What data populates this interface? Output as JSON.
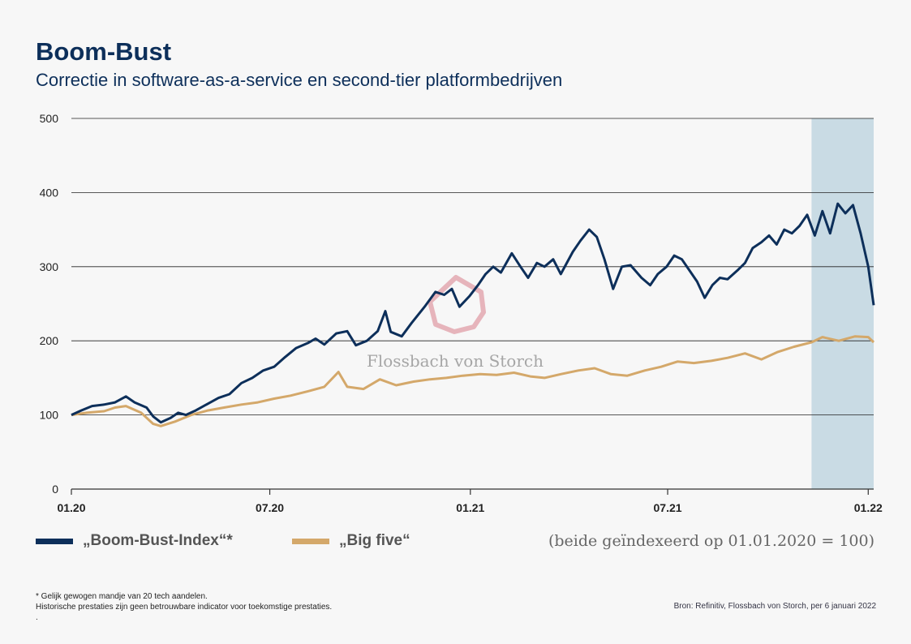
{
  "header": {
    "title": "Boom-Bust",
    "subtitle": "Correctie in software-as-a-service en second-tier platformbedrijven"
  },
  "watermark": {
    "text": "Flossbach von Storch"
  },
  "legend": {
    "items": [
      {
        "label": "„Boom-Bust-Index“*",
        "color": "#0d2f5a"
      },
      {
        "label": "„Big five“",
        "color": "#d4a86a"
      }
    ],
    "note": "(beide geïndexeerd op 01.01.2020 = 100)"
  },
  "footer": {
    "footnote_lines": [
      "* Gelijk gewogen mandje van 20 tech aandelen.",
      "Historische prestaties zijn geen betrouwbare indicator voor toekomstige prestaties.",
      "."
    ],
    "source": "Bron: Refinitiv, Flossbach von Storch, per 6 januari 2022"
  },
  "chart_data": {
    "type": "line",
    "ylim": [
      0,
      500
    ],
    "yticks": [
      0,
      100,
      200,
      300,
      400,
      500
    ],
    "xlim": [
      "2020-01-01",
      "2022-01-06"
    ],
    "xticks": [
      {
        "date": "2020-01-01",
        "label": "01.20"
      },
      {
        "date": "2020-07-01",
        "label": "07.20"
      },
      {
        "date": "2021-01-01",
        "label": "01.21"
      },
      {
        "date": "2021-07-01",
        "label": "07.21"
      },
      {
        "date": "2022-01-01",
        "label": "01.22"
      }
    ],
    "highlight_range": [
      "2021-11-10",
      "2022-01-06"
    ],
    "highlight_color": "#c9dbe4",
    "grid": true,
    "series": [
      {
        "name": "„Boom-Bust-Index“*",
        "color": "#0d2f5a",
        "points": [
          [
            "2020-01-01",
            100
          ],
          [
            "2020-01-10",
            106
          ],
          [
            "2020-01-20",
            112
          ],
          [
            "2020-01-31",
            114
          ],
          [
            "2020-02-10",
            117
          ],
          [
            "2020-02-20",
            125
          ],
          [
            "2020-02-28",
            117
          ],
          [
            "2020-03-10",
            110
          ],
          [
            "2020-03-16",
            98
          ],
          [
            "2020-03-23",
            90
          ],
          [
            "2020-04-01",
            96
          ],
          [
            "2020-04-08",
            103
          ],
          [
            "2020-04-15",
            100
          ],
          [
            "2020-04-24",
            106
          ],
          [
            "2020-05-05",
            115
          ],
          [
            "2020-05-15",
            123
          ],
          [
            "2020-05-25",
            128
          ],
          [
            "2020-06-05",
            143
          ],
          [
            "2020-06-15",
            150
          ],
          [
            "2020-06-25",
            160
          ],
          [
            "2020-07-05",
            165
          ],
          [
            "2020-07-15",
            178
          ],
          [
            "2020-07-25",
            190
          ],
          [
            "2020-08-05",
            197
          ],
          [
            "2020-08-12",
            203
          ],
          [
            "2020-08-20",
            195
          ],
          [
            "2020-08-31",
            210
          ],
          [
            "2020-09-10",
            213
          ],
          [
            "2020-09-18",
            194
          ],
          [
            "2020-09-28",
            200
          ],
          [
            "2020-10-08",
            213
          ],
          [
            "2020-10-15",
            240
          ],
          [
            "2020-10-20",
            212
          ],
          [
            "2020-10-30",
            206
          ],
          [
            "2020-11-08",
            224
          ],
          [
            "2020-11-20",
            246
          ],
          [
            "2020-11-30",
            266
          ],
          [
            "2020-12-08",
            262
          ],
          [
            "2020-12-15",
            270
          ],
          [
            "2020-12-22",
            246
          ],
          [
            "2020-12-31",
            260
          ],
          [
            "2021-01-08",
            275
          ],
          [
            "2021-01-15",
            290
          ],
          [
            "2021-01-22",
            300
          ],
          [
            "2021-01-29",
            292
          ],
          [
            "2021-02-08",
            318
          ],
          [
            "2021-02-16",
            300
          ],
          [
            "2021-02-23",
            285
          ],
          [
            "2021-03-03",
            305
          ],
          [
            "2021-03-10",
            300
          ],
          [
            "2021-03-18",
            310
          ],
          [
            "2021-03-25",
            290
          ],
          [
            "2021-04-05",
            320
          ],
          [
            "2021-04-12",
            335
          ],
          [
            "2021-04-20",
            350
          ],
          [
            "2021-04-27",
            340
          ],
          [
            "2021-05-04",
            310
          ],
          [
            "2021-05-12",
            270
          ],
          [
            "2021-05-20",
            300
          ],
          [
            "2021-05-28",
            302
          ],
          [
            "2021-06-07",
            285
          ],
          [
            "2021-06-15",
            275
          ],
          [
            "2021-06-22",
            290
          ],
          [
            "2021-06-30",
            300
          ],
          [
            "2021-07-07",
            315
          ],
          [
            "2021-07-14",
            310
          ],
          [
            "2021-07-21",
            295
          ],
          [
            "2021-07-28",
            280
          ],
          [
            "2021-08-04",
            258
          ],
          [
            "2021-08-11",
            275
          ],
          [
            "2021-08-18",
            285
          ],
          [
            "2021-08-25",
            283
          ],
          [
            "2021-09-03",
            295
          ],
          [
            "2021-09-10",
            305
          ],
          [
            "2021-09-17",
            325
          ],
          [
            "2021-09-25",
            333
          ],
          [
            "2021-10-02",
            342
          ],
          [
            "2021-10-09",
            330
          ],
          [
            "2021-10-16",
            350
          ],
          [
            "2021-10-23",
            345
          ],
          [
            "2021-10-30",
            355
          ],
          [
            "2021-11-06",
            370
          ],
          [
            "2021-11-13",
            342
          ],
          [
            "2021-11-20",
            375
          ],
          [
            "2021-11-27",
            345
          ],
          [
            "2021-12-04",
            385
          ],
          [
            "2021-12-11",
            372
          ],
          [
            "2021-12-18",
            383
          ],
          [
            "2021-12-25",
            345
          ],
          [
            "2022-01-01",
            300
          ],
          [
            "2022-01-06",
            248
          ]
        ]
      },
      {
        "name": "„Big five“",
        "color": "#d4a86a",
        "points": [
          [
            "2020-01-01",
            100
          ],
          [
            "2020-01-15",
            103
          ],
          [
            "2020-01-31",
            105
          ],
          [
            "2020-02-10",
            110
          ],
          [
            "2020-02-20",
            112
          ],
          [
            "2020-03-05",
            103
          ],
          [
            "2020-03-16",
            88
          ],
          [
            "2020-03-23",
            85
          ],
          [
            "2020-04-05",
            91
          ],
          [
            "2020-04-20",
            100
          ],
          [
            "2020-05-05",
            106
          ],
          [
            "2020-05-20",
            110
          ],
          [
            "2020-06-05",
            114
          ],
          [
            "2020-06-20",
            117
          ],
          [
            "2020-07-05",
            122
          ],
          [
            "2020-07-20",
            126
          ],
          [
            "2020-08-05",
            132
          ],
          [
            "2020-08-20",
            138
          ],
          [
            "2020-09-02",
            158
          ],
          [
            "2020-09-10",
            138
          ],
          [
            "2020-09-25",
            135
          ],
          [
            "2020-10-10",
            148
          ],
          [
            "2020-10-25",
            140
          ],
          [
            "2020-11-10",
            145
          ],
          [
            "2020-11-25",
            148
          ],
          [
            "2020-12-10",
            150
          ],
          [
            "2020-12-25",
            153
          ],
          [
            "2021-01-10",
            155
          ],
          [
            "2021-01-25",
            154
          ],
          [
            "2021-02-10",
            157
          ],
          [
            "2021-02-25",
            152
          ],
          [
            "2021-03-10",
            150
          ],
          [
            "2021-03-25",
            155
          ],
          [
            "2021-04-10",
            160
          ],
          [
            "2021-04-25",
            163
          ],
          [
            "2021-05-10",
            155
          ],
          [
            "2021-05-25",
            153
          ],
          [
            "2021-06-10",
            160
          ],
          [
            "2021-06-25",
            165
          ],
          [
            "2021-07-10",
            172
          ],
          [
            "2021-07-25",
            170
          ],
          [
            "2021-08-10",
            173
          ],
          [
            "2021-08-25",
            177
          ],
          [
            "2021-09-10",
            183
          ],
          [
            "2021-09-25",
            175
          ],
          [
            "2021-10-10",
            185
          ],
          [
            "2021-10-25",
            192
          ],
          [
            "2021-11-10",
            198
          ],
          [
            "2021-11-20",
            205
          ],
          [
            "2021-12-05",
            200
          ],
          [
            "2021-12-20",
            206
          ],
          [
            "2022-01-01",
            205
          ],
          [
            "2022-01-06",
            198
          ]
        ]
      }
    ]
  }
}
